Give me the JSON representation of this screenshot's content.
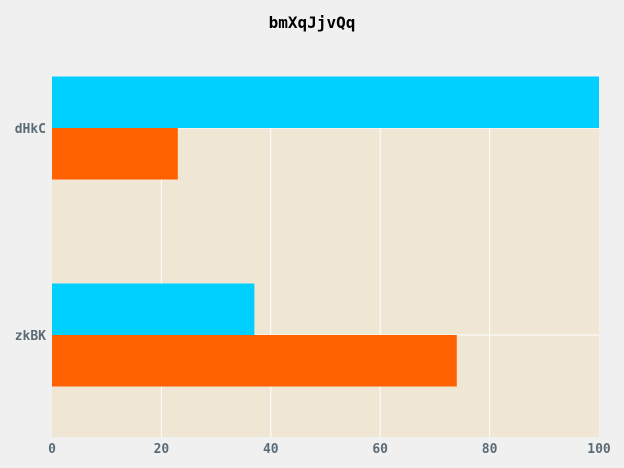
{
  "chart_data": {
    "type": "bar",
    "orientation": "horizontal",
    "title": "bmXqJjvQq",
    "categories": [
      "dHkC",
      "zkBK"
    ],
    "series": [
      {
        "values": [
          100,
          37
        ],
        "color": "#00d0ff"
      },
      {
        "values": [
          23,
          74
        ],
        "color": "#ff6000"
      }
    ],
    "xlim": [
      0,
      100
    ],
    "xticks": [
      0,
      20,
      40,
      60,
      80,
      100
    ],
    "xlabel": "",
    "ylabel": "",
    "grid": true,
    "legend": "none"
  },
  "style": {
    "page_bg": "#f0f0f0",
    "plot_bg": "#efe6d4",
    "grid_color": "#ffffff",
    "title_color": "#000000",
    "tick_color": "#5b6b76"
  }
}
